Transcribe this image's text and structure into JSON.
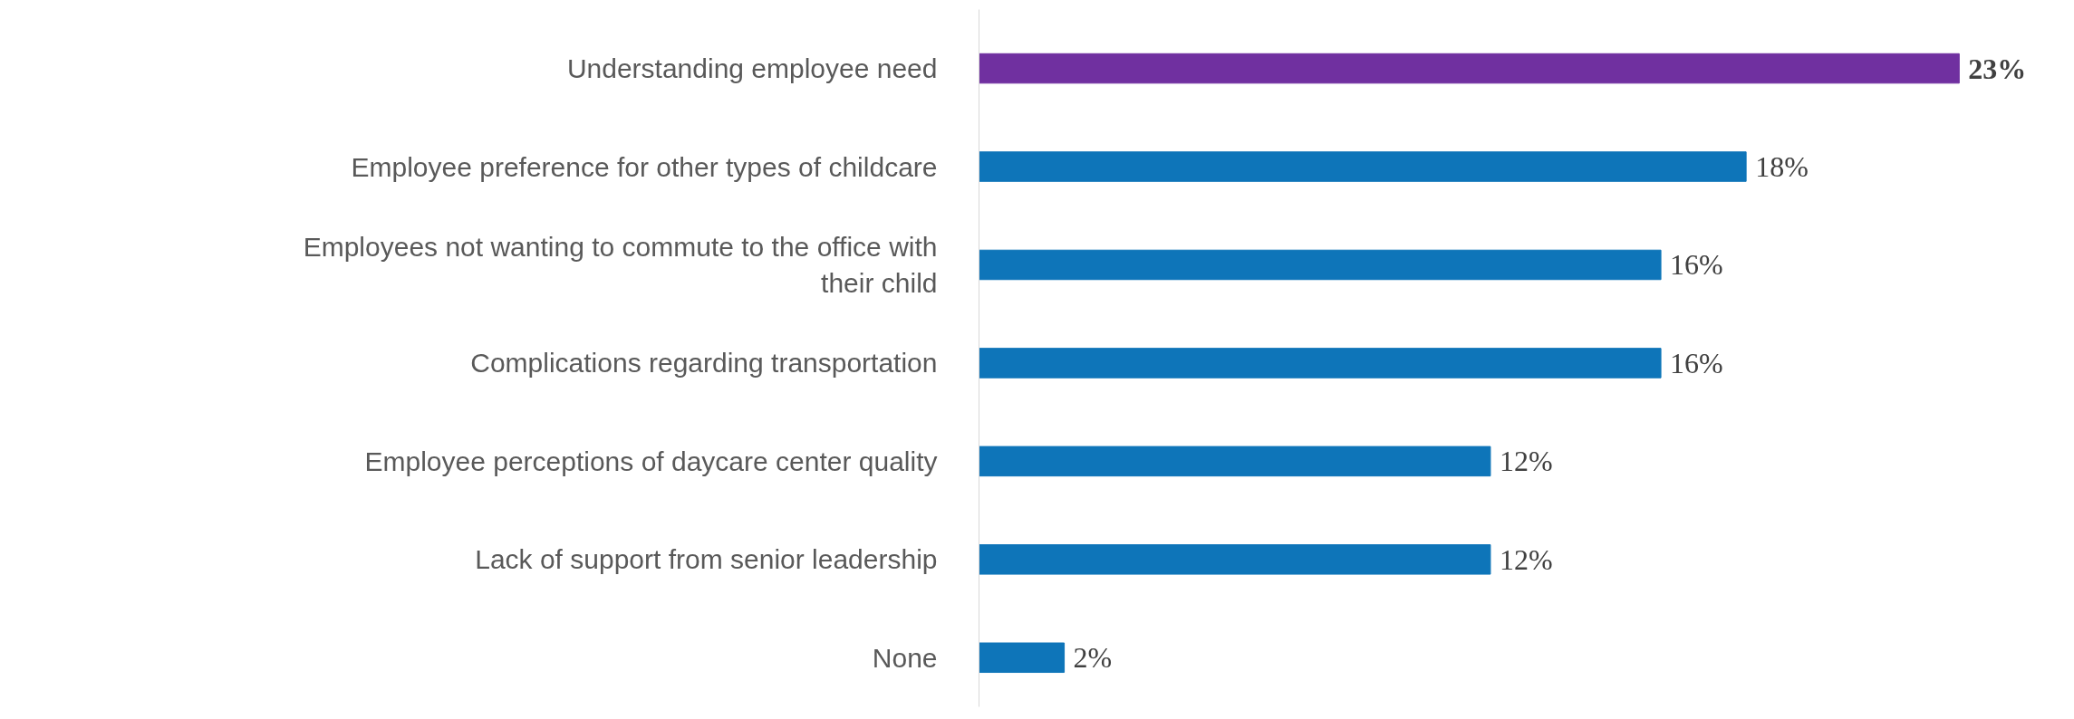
{
  "chart_data": {
    "type": "bar",
    "orientation": "horizontal",
    "categories": [
      "Understanding employee need",
      "Employee preference for other types of childcare",
      "Employees not wanting to commute to the office with their child",
      "Complications regarding transportation ",
      "Employee perceptions of daycare center quality",
      "Lack of support from senior leadership",
      "None"
    ],
    "values": [
      23,
      18,
      16,
      16,
      12,
      12,
      2
    ],
    "colors": [
      "#7030a0",
      "#0e75b9",
      "#0e75b9",
      "#0e75b9",
      "#0e75b9",
      "#0e75b9",
      "#0e75b9"
    ],
    "value_labels": [
      "23%",
      "18%",
      "16%",
      "16%",
      "12%",
      "12%",
      "2%"
    ],
    "grid": false
  }
}
